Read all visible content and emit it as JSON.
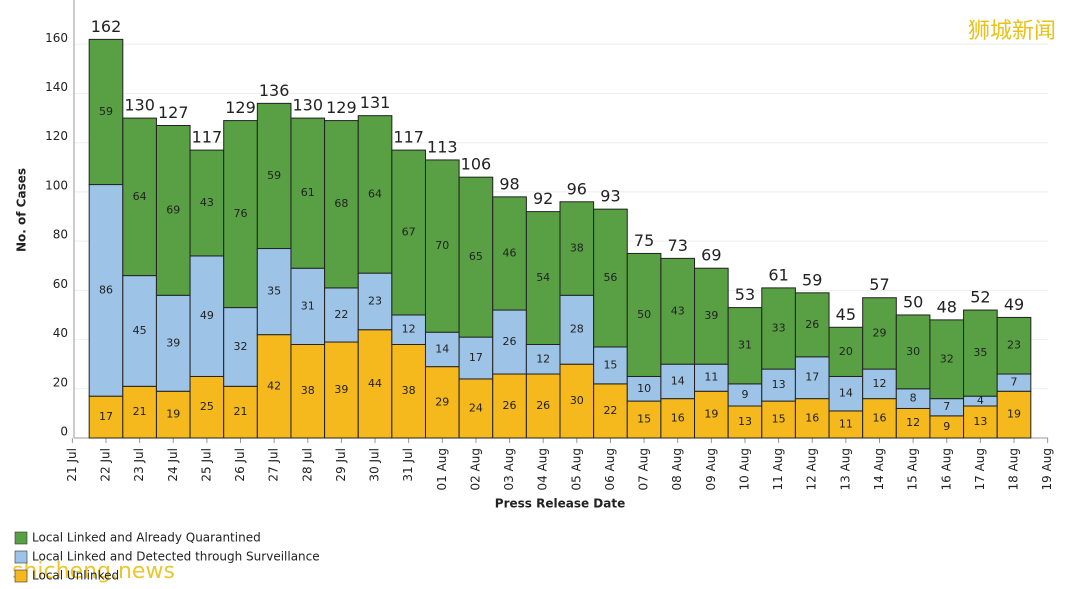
{
  "chart_data": {
    "type": "stacked_bar",
    "y_label": "No. of Cases",
    "x_label": "Press Release Date",
    "categories": [
      "21 Jul",
      "22 Jul",
      "23 Jul",
      "24 Jul",
      "25 Jul",
      "26 Jul",
      "27 Jul",
      "28 Jul",
      "29 Jul",
      "30 Jul",
      "31 Jul",
      "01 Aug",
      "02 Aug",
      "03 Aug",
      "04 Aug",
      "05 Aug",
      "06 Aug",
      "07 Aug",
      "08 Aug",
      "09 Aug",
      "10 Aug",
      "11 Aug",
      "12 Aug",
      "13 Aug",
      "14 Aug",
      "15 Aug",
      "16 Aug",
      "17 Aug",
      "18 Aug",
      "19 Aug"
    ],
    "series": [
      {
        "name": "Local Unlinked",
        "color": "#f5b91e",
        "values": [
          null,
          17,
          21,
          19,
          25,
          21,
          42,
          38,
          39,
          44,
          38,
          29,
          24,
          26,
          26,
          30,
          22,
          15,
          16,
          19,
          13,
          15,
          16,
          11,
          16,
          12,
          9,
          13,
          19,
          null
        ]
      },
      {
        "name": "Local Linked and Detected through Surveillance",
        "color": "#9dc3e6",
        "values": [
          null,
          86,
          45,
          39,
          49,
          32,
          35,
          31,
          22,
          23,
          12,
          14,
          17,
          26,
          12,
          28,
          15,
          10,
          14,
          11,
          9,
          13,
          17,
          14,
          12,
          8,
          7,
          4,
          7,
          null
        ]
      },
      {
        "name": "Local Linked and Already Quarantined",
        "color": "#58a043",
        "values": [
          null,
          59,
          64,
          69,
          43,
          76,
          59,
          61,
          68,
          64,
          67,
          70,
          65,
          46,
          54,
          38,
          56,
          50,
          43,
          39,
          31,
          33,
          26,
          20,
          29,
          30,
          32,
          35,
          23,
          null
        ]
      }
    ],
    "totals": [
      null,
      162,
      130,
      127,
      117,
      129,
      136,
      130,
      129,
      131,
      117,
      113,
      106,
      98,
      92,
      96,
      93,
      75,
      73,
      69,
      53,
      61,
      59,
      45,
      57,
      50,
      48,
      52,
      49,
      null
    ],
    "ylim": [
      0,
      178
    ],
    "yticks": [
      0,
      20,
      40,
      60,
      80,
      100,
      120,
      140,
      160
    ],
    "watermarks": [
      "狮城新闻",
      "shicheng.news"
    ]
  }
}
